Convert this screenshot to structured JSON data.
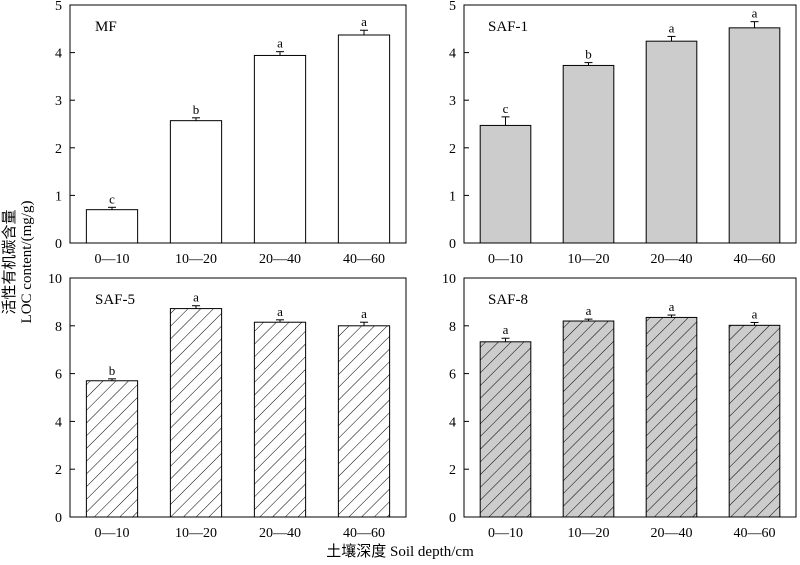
{
  "figure": {
    "ylabel_cn": "活性有机碳含量",
    "ylabel_en": "LOC content/(mg/g)",
    "xlabel": "土壤深度 Soil depth/cm",
    "categories": [
      "0—10",
      "10—20",
      "20—40",
      "40—60"
    ]
  },
  "chart_data": [
    {
      "type": "bar",
      "title": "MF",
      "categories": [
        "0—10",
        "10—20",
        "20—40",
        "40—60"
      ],
      "values": [
        0.7,
        2.57,
        3.94,
        4.37
      ],
      "errors": [
        0.05,
        0.06,
        0.08,
        0.1
      ],
      "letters": [
        "c",
        "b",
        "a",
        "a"
      ],
      "ylim": [
        0,
        5
      ],
      "yticks": [
        0,
        1,
        2,
        3,
        4,
        5
      ],
      "fill": "#ffffff",
      "hatch": false,
      "xlabel": "土壤深度 Soil depth/cm",
      "ylabel": "活性有机碳含量 LOC content/(mg/g)"
    },
    {
      "type": "bar",
      "title": "SAF-1",
      "categories": [
        "0—10",
        "10—20",
        "20—40",
        "40—60"
      ],
      "values": [
        2.47,
        3.73,
        4.24,
        4.52
      ],
      "errors": [
        0.18,
        0.06,
        0.1,
        0.13
      ],
      "letters": [
        "c",
        "b",
        "a",
        "a"
      ],
      "ylim": [
        0,
        5
      ],
      "yticks": [
        0,
        1,
        2,
        3,
        4,
        5
      ],
      "fill": "#cccccc",
      "hatch": false,
      "xlabel": "土壤深度 Soil depth/cm",
      "ylabel": "活性有机碳含量 LOC content/(mg/g)"
    },
    {
      "type": "bar",
      "title": "SAF-5",
      "categories": [
        "0—10",
        "10—20",
        "20—40",
        "40—60"
      ],
      "values": [
        5.7,
        8.72,
        8.15,
        8.0
      ],
      "errors": [
        0.08,
        0.12,
        0.1,
        0.15
      ],
      "letters": [
        "b",
        "a",
        "a",
        "a"
      ],
      "ylim": [
        0,
        10
      ],
      "yticks": [
        0,
        2,
        4,
        6,
        8,
        10
      ],
      "fill": "#ffffff",
      "hatch": true,
      "xlabel": "土壤深度 Soil depth/cm",
      "ylabel": "活性有机碳含量 LOC content/(mg/g)"
    },
    {
      "type": "bar",
      "title": "SAF-8",
      "categories": [
        "0—10",
        "10—20",
        "20—40",
        "40—60"
      ],
      "values": [
        7.33,
        8.2,
        8.35,
        8.02
      ],
      "errors": [
        0.15,
        0.08,
        0.1,
        0.12
      ],
      "letters": [
        "a",
        "a",
        "a",
        "a"
      ],
      "ylim": [
        0,
        10
      ],
      "yticks": [
        0,
        2,
        4,
        6,
        8,
        10
      ],
      "fill": "#cccccc",
      "hatch": true,
      "xlabel": "土壤深度 Soil depth/cm",
      "ylabel": "活性有机碳含量 LOC content/(mg/g)"
    }
  ]
}
